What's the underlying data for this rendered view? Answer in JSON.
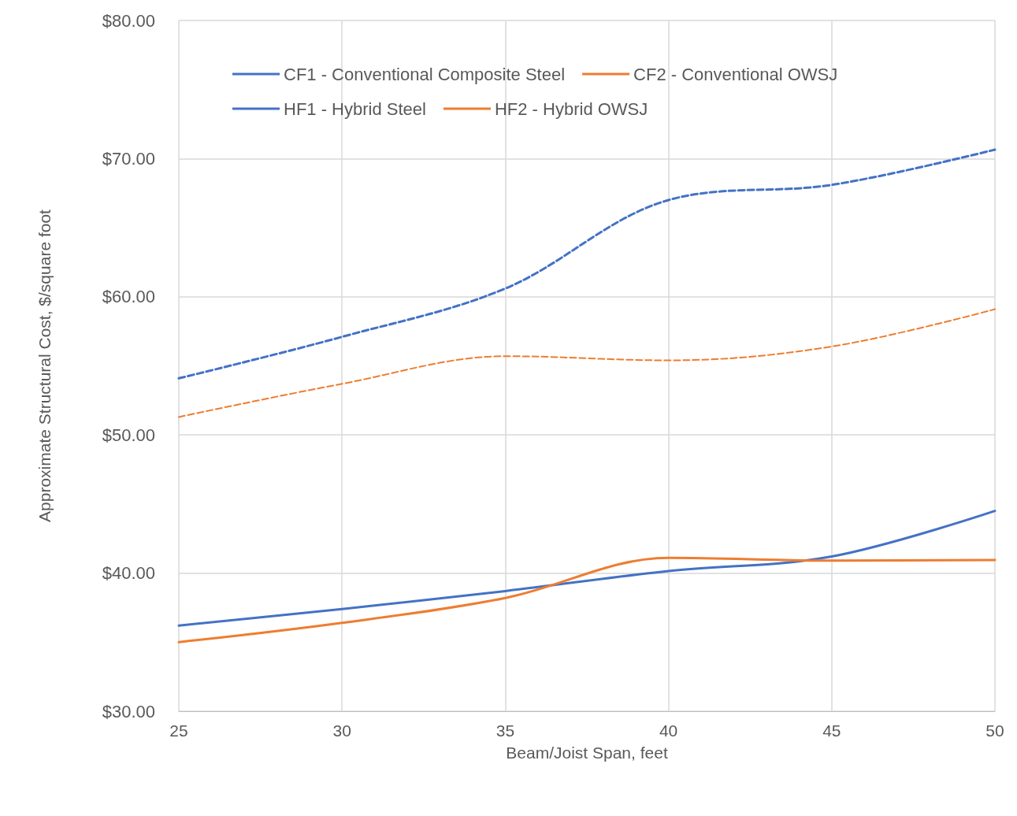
{
  "chart_data": {
    "type": "line",
    "xlabel": "Beam/Joist Span, feet",
    "ylabel": "Approximate Structural Cost, $/square foot",
    "x": [
      25,
      30,
      35,
      40,
      45,
      50
    ],
    "series": [
      {
        "name": "CF1 - Conventional Composite Steel",
        "color": "#4472c4",
        "line_style": "solid",
        "values": [
          36.2,
          37.4,
          38.7,
          40.15,
          41.2,
          44.5
        ]
      },
      {
        "name": "CF2 - Conventional OWSJ",
        "color": "#ed7d31",
        "line_style": "solid",
        "values": [
          35.0,
          36.4,
          38.2,
          41.1,
          40.9,
          40.95
        ]
      },
      {
        "name": "HF1 - Hybrid Steel",
        "color": "#4472c4",
        "line_style": "dashed",
        "values": [
          54.1,
          57.1,
          60.6,
          67.0,
          68.1,
          70.65
        ]
      },
      {
        "name": "HF2 - Hybrid OWSJ",
        "color": "#ed7d31",
        "line_style": "dashed",
        "values": [
          51.3,
          53.7,
          55.7,
          55.4,
          56.4,
          59.1
        ]
      }
    ],
    "xlim": [
      25,
      50
    ],
    "xticks": [
      25,
      30,
      35,
      40,
      45,
      50
    ],
    "ylim": [
      30,
      80
    ],
    "yticks": [
      {
        "value": 30,
        "label": "$30.00"
      },
      {
        "value": 40,
        "label": "$40.00"
      },
      {
        "value": 50,
        "label": "$50.00"
      },
      {
        "value": 60,
        "label": "$60.00"
      },
      {
        "value": 70,
        "label": "$70.00"
      },
      {
        "value": 80,
        "label": "$80.00"
      }
    ],
    "grid": true,
    "legend": "top",
    "marker": "none"
  }
}
